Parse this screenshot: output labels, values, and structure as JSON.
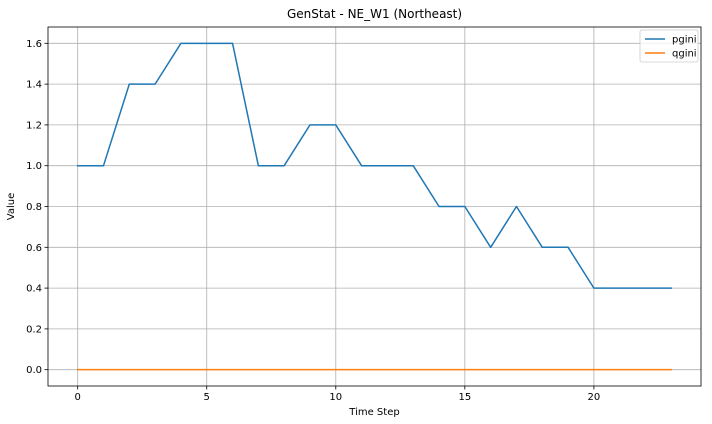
{
  "chart_data": {
    "type": "line",
    "title": "GenStat - NE_W1 (Northeast)",
    "xlabel": "Time Step",
    "ylabel": "Value",
    "x": [
      0,
      1,
      2,
      3,
      4,
      5,
      6,
      7,
      8,
      9,
      10,
      11,
      12,
      13,
      14,
      15,
      16,
      17,
      18,
      19,
      20,
      21,
      22,
      23
    ],
    "xlim": [
      -1.15,
      24.15
    ],
    "ylim": [
      -0.08,
      1.68
    ],
    "xticks": [
      0,
      5,
      10,
      15,
      20
    ],
    "yticks": [
      0.0,
      0.2,
      0.4,
      0.6,
      0.8,
      1.0,
      1.2,
      1.4,
      1.6
    ],
    "xtick_labels": [
      "0",
      "5",
      "10",
      "15",
      "20"
    ],
    "ytick_labels": [
      "0.0",
      "0.2",
      "0.4",
      "0.6",
      "0.8",
      "1.0",
      "1.2",
      "1.4",
      "1.6"
    ],
    "grid": true,
    "legend_position": "top-right",
    "series": [
      {
        "name": "pgini",
        "color": "#1f77b4",
        "values": [
          1.0,
          1.0,
          1.4,
          1.4,
          1.6,
          1.6,
          1.6,
          1.0,
          1.0,
          1.2,
          1.2,
          1.0,
          1.0,
          1.0,
          0.8,
          0.8,
          0.6,
          0.8,
          0.6,
          0.6,
          0.4,
          0.4,
          0.4,
          0.4
        ]
      },
      {
        "name": "qgini",
        "color": "#ff7f0e",
        "values": [
          0,
          0,
          0,
          0,
          0,
          0,
          0,
          0,
          0,
          0,
          0,
          0,
          0,
          0,
          0,
          0,
          0,
          0,
          0,
          0,
          0,
          0,
          0,
          0
        ]
      }
    ]
  }
}
